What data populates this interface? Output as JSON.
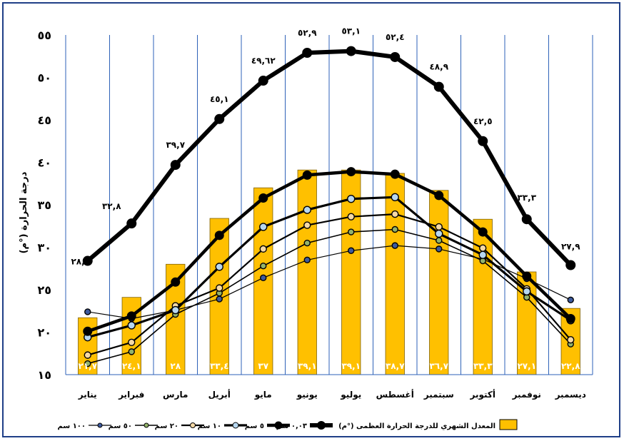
{
  "chart_data": {
    "type": "bar",
    "ylabel": "درجة الحرارة (°م)",
    "ylim": [
      15,
      55
    ],
    "yticks": [
      "١٥",
      "٢٠",
      "٢٥",
      "٣٠",
      "٣٥",
      "٤٠",
      "٤٥",
      "٥٠",
      "٥٥"
    ],
    "grid": "vertical",
    "categories": [
      "يناير",
      "فبراير",
      "مارس",
      "أبريل",
      "مايو",
      "يونيو",
      "يوليو",
      "أغسطس",
      "سبتمبر",
      "أكتوبر",
      "نوفمبر",
      "ديسمبر"
    ],
    "bar_series": {
      "name": "المعدل الشهري للدرجة الحرارة العظمى (°م)",
      "values": [
        21.7,
        24.1,
        28,
        33.4,
        37,
        39.1,
        39.1,
        38.7,
        36.7,
        33.3,
        27.1,
        22.8
      ],
      "labels": [
        "٢١,٧",
        "٢٤,١",
        "٢٨",
        "٣٣,٤",
        "٣٧",
        "٣٩,١",
        "٣٩,١",
        "٣٨,٧",
        "٣٦,٧",
        "٣٣,٣",
        "٢٧,١",
        "٢٢,٨"
      ],
      "color": "#ffc000"
    },
    "line_series": [
      {
        "name": "٠,٠٣ سم",
        "values": [
          28.4,
          32.8,
          39.7,
          45.1,
          49.62,
          52.9,
          53.1,
          52.4,
          48.9,
          42.5,
          33.3,
          27.9
        ],
        "labels": [
          "٢٨,٤",
          "٣٢,٨",
          "٣٩,٧",
          "٤٥,١",
          "٤٩,٦٢",
          "٥٢,٩",
          "٥٣,١",
          "٥٢,٤",
          "٤٨,٩",
          "٤٢,٥",
          "٣٣,٣",
          "٢٧,٩"
        ],
        "color": "#000000",
        "fill": "#000000"
      },
      {
        "name": "٥ سم",
        "values": [
          20.1,
          21.9,
          25.9,
          31.4,
          35.8,
          38.5,
          38.9,
          38.6,
          36.1,
          31.8,
          26.6,
          21.6
        ],
        "color": "#000000",
        "fill": "#000000"
      },
      {
        "name": "١٠ سم",
        "values": [
          19.4,
          20.8,
          22.6,
          27.7,
          32.4,
          34.4,
          35.7,
          35.9,
          31.6,
          29.1,
          24.8,
          21.4
        ],
        "color": "#000000",
        "fill": "#b7d7f0"
      },
      {
        "name": "٢٠ سم",
        "values": [
          17.3,
          18.8,
          23.1,
          25.2,
          29.8,
          32.6,
          33.6,
          33.9,
          32.4,
          29.9,
          25.1,
          19.1
        ],
        "color": "#000000",
        "fill": "#f5d9a6"
      },
      {
        "name": "٥٠ سم",
        "values": [
          16.3,
          17.7,
          22.1,
          24.6,
          27.8,
          30.5,
          31.8,
          32.1,
          30.8,
          28.4,
          24.1,
          18.6
        ],
        "color": "#000000",
        "fill": "#93b36b"
      },
      {
        "name": "١٠٠ سم",
        "values": [
          22.4,
          21.6,
          22.6,
          23.9,
          26.4,
          28.5,
          29.6,
          30.2,
          29.8,
          28.6,
          26.3,
          23.8
        ],
        "color": "#000000",
        "fill": "#3d5a9e"
      }
    ]
  }
}
